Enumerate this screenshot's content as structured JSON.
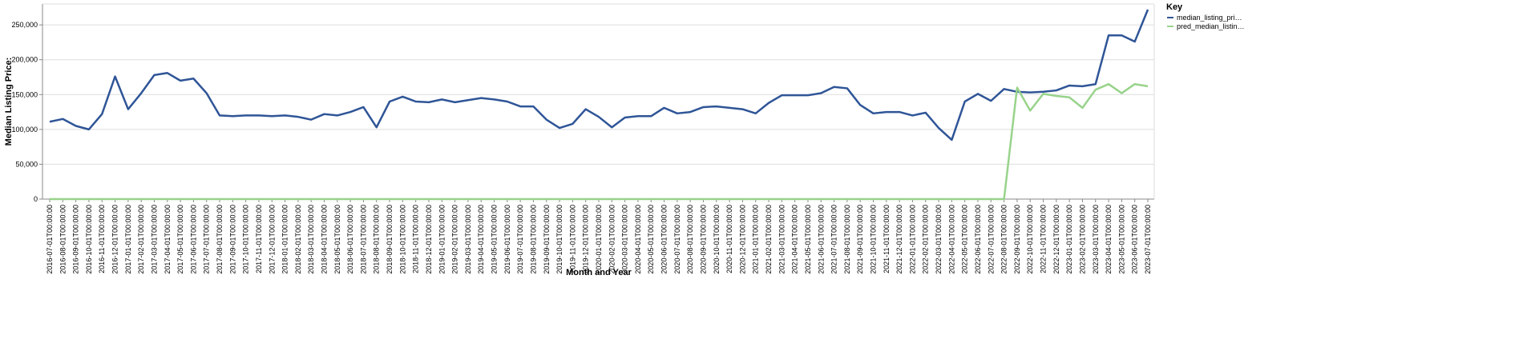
{
  "chart_data": {
    "type": "line",
    "x_label": "Month and Year",
    "y_label": "Median Listing Price:",
    "legend_title": "Key",
    "legend_labels": [
      "median_listing_pri…",
      "pred_median_listin…"
    ],
    "categories": [
      "2016-07-01T00:00:00",
      "2016-08-01T00:00:00",
      "2016-09-01T00:00:00",
      "2016-10-01T00:00:00",
      "2016-11-01T00:00:00",
      "2016-12-01T00:00:00",
      "2017-01-01T00:00:00",
      "2017-02-01T00:00:00",
      "2017-03-01T00:00:00",
      "2017-04-01T00:00:00",
      "2017-05-01T00:00:00",
      "2017-06-01T00:00:00",
      "2017-07-01T00:00:00",
      "2017-08-01T00:00:00",
      "2017-09-01T00:00:00",
      "2017-10-01T00:00:00",
      "2017-11-01T00:00:00",
      "2017-12-01T00:00:00",
      "2018-01-01T00:00:00",
      "2018-02-01T00:00:00",
      "2018-03-01T00:00:00",
      "2018-04-01T00:00:00",
      "2018-05-01T00:00:00",
      "2018-06-01T00:00:00",
      "2018-07-01T00:00:00",
      "2018-08-01T00:00:00",
      "2018-09-01T00:00:00",
      "2018-10-01T00:00:00",
      "2018-11-01T00:00:00",
      "2018-12-01T00:00:00",
      "2019-01-01T00:00:00",
      "2019-02-01T00:00:00",
      "2019-03-01T00:00:00",
      "2019-04-01T00:00:00",
      "2019-05-01T00:00:00",
      "2019-06-01T00:00:00",
      "2019-07-01T00:00:00",
      "2019-08-01T00:00:00",
      "2019-09-01T00:00:00",
      "2019-10-01T00:00:00",
      "2019-11-01T00:00:00",
      "2019-12-01T00:00:00",
      "2020-01-01T00:00:00",
      "2020-02-01T00:00:00",
      "2020-03-01T00:00:00",
      "2020-04-01T00:00:00",
      "2020-05-01T00:00:00",
      "2020-06-01T00:00:00",
      "2020-07-01T00:00:00",
      "2020-08-01T00:00:00",
      "2020-09-01T00:00:00",
      "2020-10-01T00:00:00",
      "2020-11-01T00:00:00",
      "2020-12-01T00:00:00",
      "2021-01-01T00:00:00",
      "2021-02-01T00:00:00",
      "2021-03-01T00:00:00",
      "2021-04-01T00:00:00",
      "2021-05-01T00:00:00",
      "2021-06-01T00:00:00",
      "2021-07-01T00:00:00",
      "2021-08-01T00:00:00",
      "2021-09-01T00:00:00",
      "2021-10-01T00:00:00",
      "2021-11-01T00:00:00",
      "2021-12-01T00:00:00",
      "2022-01-01T00:00:00",
      "2022-02-01T00:00:00",
      "2022-03-01T00:00:00",
      "2022-04-01T00:00:00",
      "2022-05-01T00:00:00",
      "2022-06-01T00:00:00",
      "2022-07-01T00:00:00",
      "2022-08-01T00:00:00",
      "2022-09-01T00:00:00",
      "2022-10-01T00:00:00",
      "2022-11-01T00:00:00",
      "2022-12-01T00:00:00",
      "2023-01-01T00:00:00",
      "2023-02-01T00:00:00",
      "2023-03-01T00:00:00",
      "2023-04-01T00:00:00",
      "2023-05-01T00:00:00",
      "2023-06-01T00:00:00",
      "2023-07-01T00:00:00"
    ],
    "series": [
      {
        "name": "median_listing_price",
        "color": "#2f5597",
        "values": [
          111000,
          115000,
          105000,
          100000,
          122000,
          176000,
          129000,
          152000,
          178000,
          181000,
          170000,
          173000,
          152000,
          120000,
          119000,
          120000,
          120000,
          119000,
          120000,
          118000,
          114000,
          122000,
          120000,
          125000,
          132000,
          103000,
          140000,
          147000,
          140000,
          139000,
          143000,
          139000,
          142000,
          145000,
          143000,
          140000,
          133000,
          133000,
          114000,
          102000,
          108000,
          129000,
          118000,
          103000,
          117000,
          119000,
          119000,
          131000,
          123000,
          125000,
          132000,
          133000,
          131000,
          129000,
          123000,
          138000,
          149000,
          149000,
          149000,
          152000,
          161000,
          159000,
          135000,
          123000,
          125000,
          125000,
          120000,
          124000,
          102000,
          85000,
          140000,
          151000,
          141000,
          158000,
          154000,
          153000,
          154000,
          156000,
          163000,
          162000,
          165000,
          235000,
          235000,
          226000,
          272000
        ]
      },
      {
        "name": "pred_median_listing_price",
        "color": "#98d38b",
        "values": [
          0,
          0,
          0,
          0,
          0,
          0,
          0,
          0,
          0,
          0,
          0,
          0,
          0,
          0,
          0,
          0,
          0,
          0,
          0,
          0,
          0,
          0,
          0,
          0,
          0,
          0,
          0,
          0,
          0,
          0,
          0,
          0,
          0,
          0,
          0,
          0,
          0,
          0,
          0,
          0,
          0,
          0,
          0,
          0,
          0,
          0,
          0,
          0,
          0,
          0,
          0,
          0,
          0,
          0,
          0,
          0,
          0,
          0,
          0,
          0,
          0,
          0,
          0,
          0,
          0,
          0,
          0,
          0,
          0,
          0,
          0,
          0,
          0,
          0,
          160000,
          127000,
          151000,
          148000,
          146000,
          131000,
          157000,
          165000,
          152000,
          165000,
          162000
        ]
      }
    ],
    "ylim": [
      0,
      280000
    ],
    "yticks": [
      0,
      {
        "value": 50000,
        "label": "50,000"
      },
      {
        "value": 100000,
        "label": "100,000"
      },
      {
        "value": 150000,
        "label": "150,000"
      },
      {
        "value": 200000,
        "label": "200,000"
      },
      {
        "value": 250000,
        "label": "250,000"
      }
    ],
    "grid": true,
    "legend_position": "right"
  }
}
